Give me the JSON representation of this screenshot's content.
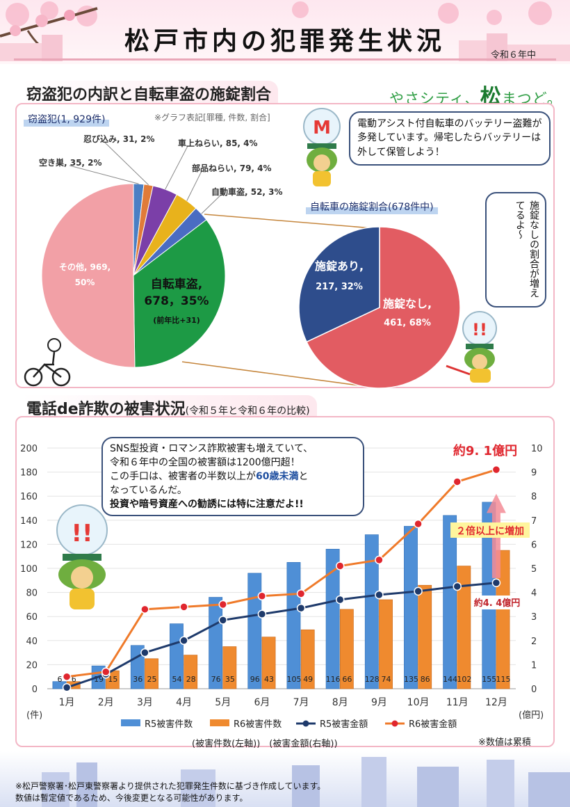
{
  "header": {
    "title": "松戸市内の犯罪発生状況",
    "period": "令和６年中",
    "slogan_a": "やさシティ、",
    "slogan_b": "松",
    "slogan_c": "まつど。"
  },
  "section1": {
    "heading": "窃盗犯の内訳と自転車盗の施錠割合",
    "theft_label": "窃盗犯(1, 929件)",
    "legend_note": "※グラフ表記[罪種, 件数, 割合]",
    "bubble_text": "電動アシスト付自転車のバッテリー盗難が多発しています。帰宅したらバッテリーは外して保管しよう！",
    "lock_label": "自転車の施錠割合(678件中)",
    "vertical_bubble": "施錠なしの割合が増えてるよ～"
  },
  "section2": {
    "heading": "電話de詐欺の被害状況",
    "heading_sub": "(令和５年と令和６年の比較)",
    "bubble_line1": "SNS型投資・ロマンス詐欺被害も増えていて、",
    "bubble_line2": "令和６年中の全国の被害額は1200億円超！",
    "bubble_line3a": "この手口は、被害者の半数以上が",
    "bubble_line3b": "60歳未満",
    "bubble_line3c": "と",
    "bubble_line4": "なっているんだ。",
    "bubble_line5": "投資や暗号資産への勧誘には特に注意だよ!!",
    "axis_note": "(被害件数(左軸))　(被害金額(右軸))",
    "cumulative_note": "※数値は累積"
  },
  "footer": {
    "line1": "※松戸警察署･松戸東警察署より提供された犯罪発生件数に基づき作成しています。",
    "line2": "数値は暫定値であるため、今後変更となる可能性があります。"
  },
  "colors": {
    "pink_border": "#f3b6c5",
    "green": "#1d9a45",
    "salmon": "#f2a0a6",
    "navy": "#2e4d8c",
    "red": "#e25c62",
    "bar_blue": "#4f8fd6",
    "bar_orange": "#ef8a2f"
  },
  "chart_data": [
    {
      "type": "pie",
      "title": "窃盗犯(1, 929件)",
      "slices": [
        {
          "name": "自転車盗",
          "value": 678,
          "percent": 35,
          "label": "自転車盗,",
          "sublabel": "678，35%",
          "note": "(前年比+31)",
          "color": "#1d9a45"
        },
        {
          "name": "その他",
          "value": 969,
          "percent": 50,
          "label": "その他, 969,",
          "sublabel": "50%",
          "color": "#f2a0a6"
        },
        {
          "name": "空き巣",
          "value": 35,
          "percent": 2,
          "label": "空き巣, 35, 2%",
          "color": "#4a7fc4"
        },
        {
          "name": "忍び込み",
          "value": 31,
          "percent": 2,
          "label": "忍び込み, 31, 2%",
          "color": "#e07b39"
        },
        {
          "name": "車上ねらい",
          "value": 85,
          "percent": 4,
          "label": "車上ねらい, 85, 4%",
          "color": "#7b3fa8"
        },
        {
          "name": "部品ねらい",
          "value": 79,
          "percent": 4,
          "label": "部品ねらい, 79, 4%",
          "color": "#e8b21c"
        },
        {
          "name": "自動車盗",
          "value": 52,
          "percent": 3,
          "label": "自動車盗, 52, 3%",
          "color": "#4a6cc2"
        }
      ]
    },
    {
      "type": "pie",
      "title": "自転車の施錠割合(678件中)",
      "slices": [
        {
          "name": "施錠あり",
          "value": 217,
          "percent": 32,
          "label": "施錠あり,",
          "sublabel": "217, 32%",
          "color": "#2e4d8c"
        },
        {
          "name": "施錠なし",
          "value": 461,
          "percent": 68,
          "label": "施錠なし,",
          "sublabel": "461, 68%",
          "color": "#e25c62"
        }
      ]
    },
    {
      "type": "bar",
      "title": "電話de詐欺の被害状況",
      "categories": [
        "1月",
        "2月",
        "3月",
        "4月",
        "5月",
        "6月",
        "7月",
        "8月",
        "9月",
        "10月",
        "11月",
        "12月"
      ],
      "ylabel_left": "(件)",
      "ylabel_right": "(億円)",
      "ylim_left": [
        0,
        200
      ],
      "yticks_left": [
        "0",
        "20",
        "40",
        "60",
        "80",
        "100",
        "120",
        "140",
        "160",
        "180",
        "200"
      ],
      "ylim_right": [
        0,
        10
      ],
      "yticks_right": [
        "0",
        "1",
        "2",
        "3",
        "4",
        "5",
        "6",
        "7",
        "8",
        "9",
        "10"
      ],
      "bar_series": [
        {
          "name": "R5被害件数",
          "values": [
            6,
            19,
            36,
            54,
            76,
            96,
            105,
            116,
            128,
            135,
            144,
            155
          ],
          "color": "#4f8fd6"
        },
        {
          "name": "R6被害件数",
          "values": [
            6,
            15,
            25,
            28,
            35,
            43,
            49,
            66,
            74,
            86,
            102,
            115
          ],
          "color": "#ef8a2f"
        }
      ],
      "line_series": [
        {
          "name": "R5被害金額",
          "values": [
            0.05,
            0.6,
            1.5,
            2.0,
            2.85,
            3.1,
            3.35,
            3.7,
            3.9,
            4.05,
            4.25,
            4.4
          ],
          "color": "#1e3a6b"
        },
        {
          "name": "R6被害金額",
          "values": [
            0.5,
            0.7,
            3.3,
            3.4,
            3.5,
            3.85,
            3.95,
            5.1,
            5.35,
            6.85,
            8.6,
            9.1
          ],
          "color": "#ef7a2a"
        }
      ],
      "annotations": {
        "r6_end": "約9. 1億円",
        "r5_end": "約4. 4億円",
        "increase": "２倍以上に増加"
      }
    }
  ]
}
